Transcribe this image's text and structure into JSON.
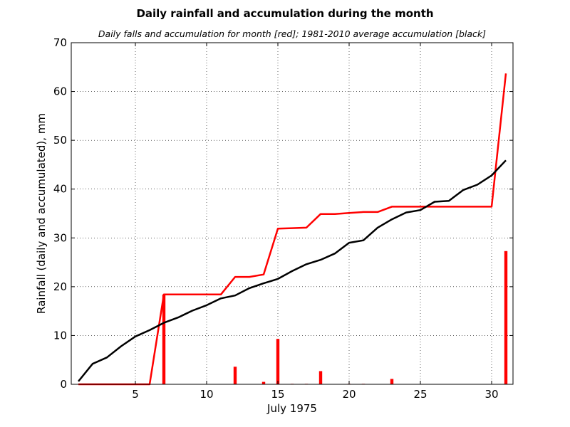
{
  "chart_data": {
    "type": "line",
    "title": "Daily rainfall and accumulation during the month",
    "subtitle": "Daily falls and accumulation for month [red]; 1981-2010 average accumulation [black]",
    "xlabel": "July 1975",
    "ylabel": "Rainfall (daily and accumulated), mm",
    "xlim": [
      0.5,
      31.5
    ],
    "ylim": [
      0,
      70
    ],
    "xticks": [
      5,
      10,
      15,
      20,
      25,
      30
    ],
    "yticks": [
      0,
      10,
      20,
      30,
      40,
      50,
      60,
      70
    ],
    "grid": true,
    "x": [
      1,
      2,
      3,
      4,
      5,
      6,
      7,
      8,
      9,
      10,
      11,
      12,
      13,
      14,
      15,
      16,
      17,
      18,
      19,
      20,
      21,
      22,
      23,
      24,
      25,
      26,
      27,
      28,
      29,
      30,
      31
    ],
    "daily_bars": {
      "color": "#ff0000",
      "values": [
        0,
        0,
        0,
        0,
        0,
        0,
        18.4,
        0,
        0,
        0,
        0,
        3.6,
        0,
        0.5,
        9.3,
        0.1,
        0.1,
        2.7,
        0,
        0.1,
        0.1,
        0,
        1.1,
        0,
        0,
        0,
        0,
        0,
        0,
        0,
        27.3
      ]
    },
    "series": [
      {
        "color": "#ff0000",
        "values": [
          0,
          0,
          0,
          0,
          0,
          0,
          18.4,
          18.4,
          18.4,
          18.4,
          18.4,
          22.0,
          22.0,
          22.5,
          31.9,
          32.0,
          32.1,
          34.9,
          34.9,
          35.1,
          35.3,
          35.3,
          36.4,
          36.4,
          36.4,
          36.4,
          36.4,
          36.4,
          36.4,
          36.4,
          63.7
        ]
      },
      {
        "color": "#000000",
        "values": [
          0.6,
          4.2,
          5.5,
          7.8,
          9.8,
          11.1,
          12.6,
          13.7,
          15.1,
          16.2,
          17.6,
          18.2,
          19.7,
          20.7,
          21.6,
          23.2,
          24.6,
          25.5,
          26.8,
          29.0,
          29.5,
          32.1,
          33.8,
          35.2,
          35.7,
          37.4,
          37.6,
          39.8,
          40.9,
          42.8,
          45.9
        ]
      }
    ]
  }
}
